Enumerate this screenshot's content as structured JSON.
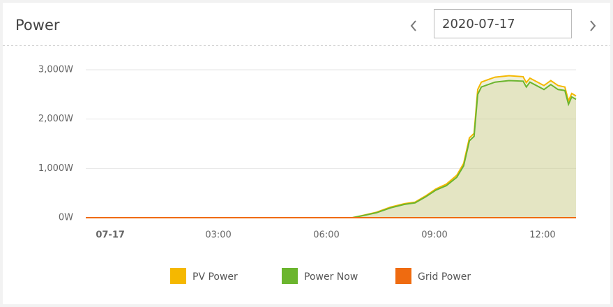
{
  "header": {
    "title": "Power",
    "date": "2020-07-17"
  },
  "chart_data": {
    "type": "line",
    "x": [
      -0.68,
      6.72,
      7.0,
      7.39,
      7.78,
      8.17,
      8.46,
      8.75,
      9.04,
      9.33,
      9.62,
      9.81,
      9.97,
      10.1,
      10.2,
      10.3,
      10.49,
      10.68,
      11.07,
      11.46,
      11.55,
      11.65,
      12.04,
      12.23,
      12.43,
      12.62,
      12.72,
      12.81,
      12.93
    ],
    "series": [
      {
        "name": "PV Power",
        "color": "#f5b800",
        "values": [
          0,
          0,
          45,
          110,
          215,
          285,
          315,
          440,
          585,
          680,
          860,
          1100,
          1620,
          1710,
          2600,
          2750,
          2800,
          2850,
          2880,
          2860,
          2740,
          2830,
          2680,
          2780,
          2680,
          2650,
          2370,
          2520,
          2470
        ]
      },
      {
        "name": "Power Now",
        "color": "#6bb52e",
        "values": [
          0,
          0,
          40,
          100,
          200,
          270,
          300,
          420,
          560,
          650,
          820,
          1050,
          1560,
          1650,
          2500,
          2650,
          2700,
          2750,
          2780,
          2770,
          2650,
          2750,
          2600,
          2700,
          2600,
          2580,
          2300,
          2450,
          2400
        ]
      },
      {
        "name": "Grid Power",
        "color": "#ef6b10",
        "values": [
          0,
          0,
          0,
          0,
          0,
          0,
          0,
          0,
          0,
          0,
          0,
          0,
          0,
          0,
          0,
          0,
          0,
          0,
          0,
          0,
          0,
          0,
          0,
          0,
          0,
          0,
          0,
          0,
          0
        ]
      }
    ],
    "xlim": [
      -0.68,
      12.93
    ],
    "xticks": [
      {
        "value": 0,
        "label": "07-17"
      },
      {
        "value": 3,
        "label": "03:00"
      },
      {
        "value": 6,
        "label": "06:00"
      },
      {
        "value": 9,
        "label": "09:00"
      },
      {
        "value": 12,
        "label": "12:00"
      }
    ],
    "ylim": [
      0,
      3000
    ],
    "yticks": [
      {
        "value": 0,
        "label": "0W"
      },
      {
        "value": 1000,
        "label": "1,000W"
      },
      {
        "value": 2000,
        "label": "2,000W"
      },
      {
        "value": 3000,
        "label": "3,000W"
      }
    ],
    "grid": true
  }
}
